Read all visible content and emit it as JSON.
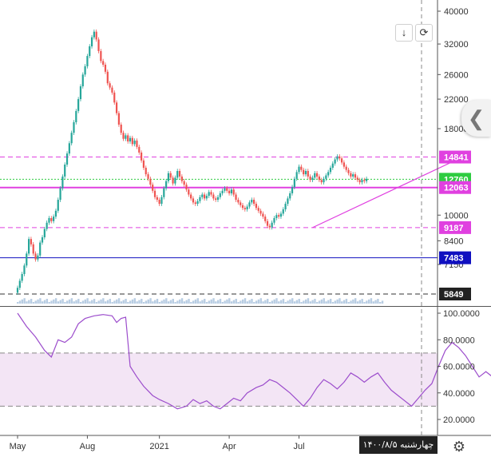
{
  "chart_data": [
    {
      "type": "candlestick",
      "title": "",
      "price_axis": {
        "scale": "log",
        "ticks": [
          40000,
          32000,
          26000,
          22000,
          18000,
          14841,
          12760,
          12063,
          10000,
          9187,
          8400,
          7483,
          7150,
          5849
        ],
        "tick_labels": [
          "40000",
          "32000",
          "26000",
          "22000",
          "18000",
          "14841",
          "12760",
          "12063",
          "10000",
          "9187",
          "8400",
          "7483",
          "7150",
          "5849"
        ]
      },
      "x_axis": {
        "ticks": [
          "May",
          "Aug",
          "2021",
          "Apr",
          "Jul"
        ]
      },
      "price_levels": [
        {
          "value": 14841,
          "label": "14841",
          "color": "#e040e0",
          "style": "dashed"
        },
        {
          "value": 12760,
          "label": "12760",
          "color": "#2ecc40",
          "style": "dotted"
        },
        {
          "value": 12063,
          "label": "12063",
          "color": "#e040e0",
          "style": "solid"
        },
        {
          "value": 9187,
          "label": "9187",
          "color": "#e040e0",
          "style": "dashed"
        },
        {
          "value": 7483,
          "label": "7483",
          "color": "#1010c0",
          "style": "solid"
        },
        {
          "value": 5849,
          "label": "5849",
          "color": "#333333",
          "style": "dashed"
        }
      ],
      "trend_lines": [
        {
          "from": {
            "t": 131,
            "price": 9187
          },
          "to": {
            "t": 200,
            "price": 15100
          },
          "color": "#e040e0"
        }
      ],
      "series": [
        {
          "values": [
            [
              5900,
              6100
            ],
            [
              6100,
              6400
            ],
            [
              6400,
              6700
            ],
            [
              6700,
              7100
            ],
            [
              7100,
              7700
            ],
            [
              7700,
              8500
            ],
            [
              8500,
              8200
            ],
            [
              8200,
              7700
            ],
            [
              7700,
              7400
            ],
            [
              7400,
              7600
            ],
            [
              7600,
              8300
            ],
            [
              8300,
              8600
            ],
            [
              8600,
              9100
            ],
            [
              9100,
              9500
            ],
            [
              9500,
              9800
            ],
            [
              9800,
              9600
            ],
            [
              9600,
              9900
            ],
            [
              9900,
              10300
            ],
            [
              10300,
              11100
            ],
            [
              11100,
              12000
            ],
            [
              12000,
              13000
            ],
            [
              13000,
              14100
            ],
            [
              14100,
              15200
            ],
            [
              15200,
              16300
            ],
            [
              16300,
              17500
            ],
            [
              17500,
              18800
            ],
            [
              18800,
              20300
            ],
            [
              20300,
              22000
            ],
            [
              22000,
              24000
            ],
            [
              24000,
              26000
            ],
            [
              26000,
              27500
            ],
            [
              27500,
              29500
            ],
            [
              29500,
              31500
            ],
            [
              31500,
              33500
            ],
            [
              33500,
              34800
            ],
            [
              34800,
              33000
            ],
            [
              33000,
              30500
            ],
            [
              30500,
              28500
            ],
            [
              28500,
              27800
            ],
            [
              27800,
              26500
            ],
            [
              26500,
              24500
            ],
            [
              24500,
              23800
            ],
            [
              23800,
              23000
            ],
            [
              23000,
              21500
            ],
            [
              21500,
              20000
            ],
            [
              20000,
              18500
            ],
            [
              18500,
              17500
            ],
            [
              17500,
              16800
            ],
            [
              16800,
              17200
            ],
            [
              17200,
              16500
            ],
            [
              16500,
              16900
            ],
            [
              16900,
              16200
            ],
            [
              16200,
              16600
            ],
            [
              16600,
              15900
            ],
            [
              15900,
              15300
            ],
            [
              15300,
              14500
            ],
            [
              14500,
              13800
            ],
            [
              13800,
              13200
            ],
            [
              13200,
              12800
            ],
            [
              12800,
              12300
            ],
            [
              12300,
              11800
            ],
            [
              11800,
              11300
            ],
            [
              11300,
              11100
            ],
            [
              11100,
              10800
            ],
            [
              10800,
              11300
            ],
            [
              11300,
              12000
            ],
            [
              12000,
              12600
            ],
            [
              12600,
              13300
            ],
            [
              13300,
              12900
            ],
            [
              12900,
              12400
            ],
            [
              12400,
              12900
            ],
            [
              12900,
              13500
            ],
            [
              13500,
              13000
            ],
            [
              13000,
              12600
            ],
            [
              12600,
              12300
            ],
            [
              12300,
              11900
            ],
            [
              11900,
              11500
            ],
            [
              11500,
              11200
            ],
            [
              11200,
              10900
            ],
            [
              10900,
              10800
            ],
            [
              10800,
              11000
            ],
            [
              11000,
              11300
            ],
            [
              11300,
              11500
            ],
            [
              11500,
              11200
            ],
            [
              11200,
              11400
            ],
            [
              11400,
              11700
            ],
            [
              11700,
              11500
            ],
            [
              11500,
              11200
            ],
            [
              11200,
              11100
            ],
            [
              11100,
              11300
            ],
            [
              11300,
              11600
            ],
            [
              11600,
              11800
            ],
            [
              11800,
              12000
            ],
            [
              12000,
              11800
            ],
            [
              11800,
              11600
            ],
            [
              11600,
              11900
            ],
            [
              11900,
              11500
            ],
            [
              11500,
              11100
            ],
            [
              11100,
              10900
            ],
            [
              10900,
              10700
            ],
            [
              10700,
              10500
            ],
            [
              10500,
              10400
            ],
            [
              10400,
              10600
            ],
            [
              10600,
              10900
            ],
            [
              10900,
              11100
            ],
            [
              11100,
              10800
            ],
            [
              10800,
              10500
            ],
            [
              10500,
              10300
            ],
            [
              10300,
              10100
            ],
            [
              10100,
              9900
            ],
            [
              9900,
              9600
            ],
            [
              9600,
              9300
            ],
            [
              9300,
              9200
            ],
            [
              9200,
              9500
            ],
            [
              9500,
              9800
            ],
            [
              9800,
              10000
            ],
            [
              10000,
              9900
            ],
            [
              9900,
              10100
            ],
            [
              10100,
              10400
            ],
            [
              10400,
              10800
            ],
            [
              10800,
              11200
            ],
            [
              11200,
              11600
            ],
            [
              11600,
              12100
            ],
            [
              12100,
              12800
            ],
            [
              12800,
              13400
            ],
            [
              13400,
              13900
            ],
            [
              13900,
              13600
            ],
            [
              13600,
              13200
            ],
            [
              13200,
              13500
            ],
            [
              13500,
              13000
            ],
            [
              13000,
              12700
            ],
            [
              12700,
              12900
            ],
            [
              12900,
              13300
            ],
            [
              13300,
              13000
            ],
            [
              13000,
              12700
            ],
            [
              12700,
              12500
            ],
            [
              12500,
              12800
            ],
            [
              12800,
              13100
            ],
            [
              13100,
              13400
            ],
            [
              13400,
              13800
            ],
            [
              13800,
              14200
            ],
            [
              14200,
              14600
            ],
            [
              14600,
              14900
            ],
            [
              14900,
              14700
            ],
            [
              14700,
              14300
            ],
            [
              14300,
              13900
            ],
            [
              13900,
              13600
            ],
            [
              13600,
              13300
            ],
            [
              13300,
              13000
            ],
            [
              13000,
              13200
            ],
            [
              13200,
              12900
            ],
            [
              12900,
              12700
            ],
            [
              12700,
              12500
            ],
            [
              12500,
              12700
            ],
            [
              12700,
              12600
            ],
            [
              12600,
              12800
            ]
          ]
        }
      ]
    },
    {
      "type": "line",
      "title": "",
      "y_axis": {
        "ticks": [
          100,
          80,
          60,
          40,
          20
        ],
        "tick_labels": [
          "100.0000",
          "80.0000",
          "60.0000",
          "40.0000",
          "20.0000"
        ]
      },
      "bands": [
        {
          "from": 30,
          "to": 70
        }
      ],
      "series": [
        {
          "values": [
            [
              0,
              100
            ],
            [
              4,
              90
            ],
            [
              8,
              82
            ],
            [
              12,
              72
            ],
            [
              15,
              67
            ],
            [
              18,
              80
            ],
            [
              21,
              78
            ],
            [
              24,
              82
            ],
            [
              27,
              92
            ],
            [
              30,
              96
            ],
            [
              34,
              98
            ],
            [
              38,
              99
            ],
            [
              42,
              98
            ],
            [
              44,
              93
            ],
            [
              46,
              96
            ],
            [
              48,
              97
            ],
            [
              50,
              60
            ],
            [
              53,
              52
            ],
            [
              56,
              45
            ],
            [
              60,
              38
            ],
            [
              63,
              35
            ],
            [
              67,
              32
            ],
            [
              71,
              28
            ],
            [
              75,
              30
            ],
            [
              78,
              35
            ],
            [
              81,
              32
            ],
            [
              84,
              34
            ],
            [
              87,
              30
            ],
            [
              90,
              28
            ],
            [
              93,
              32
            ],
            [
              96,
              36
            ],
            [
              99,
              34
            ],
            [
              102,
              40
            ],
            [
              106,
              44
            ],
            [
              109,
              46
            ],
            [
              112,
              50
            ],
            [
              115,
              48
            ],
            [
              118,
              44
            ],
            [
              121,
              40
            ],
            [
              124,
              35
            ],
            [
              127,
              30
            ],
            [
              130,
              36
            ],
            [
              133,
              44
            ],
            [
              136,
              50
            ],
            [
              139,
              47
            ],
            [
              142,
              43
            ],
            [
              145,
              48
            ],
            [
              148,
              55
            ],
            [
              151,
              52
            ],
            [
              154,
              48
            ],
            [
              157,
              52
            ],
            [
              160,
              55
            ],
            [
              163,
              48
            ],
            [
              166,
              42
            ],
            [
              169,
              38
            ],
            [
              172,
              34
            ],
            [
              175,
              30
            ],
            [
              178,
              36
            ],
            [
              181,
              42
            ],
            [
              184,
              47
            ],
            [
              187,
              60
            ],
            [
              190,
              72
            ],
            [
              193,
              78
            ],
            [
              196,
              74
            ],
            [
              199,
              68
            ],
            [
              202,
              60
            ],
            [
              205,
              52
            ],
            [
              208,
              56
            ],
            [
              211,
              52
            ],
            [
              214,
              60
            ],
            [
              217,
              64
            ],
            [
              220,
              56
            ],
            [
              223,
              52
            ],
            [
              226,
              48
            ],
            [
              229,
              42
            ],
            [
              232,
              46
            ],
            [
              235,
              42
            ],
            [
              238,
              40
            ],
            [
              241,
              44
            ],
            [
              244,
              46
            ]
          ]
        }
      ]
    }
  ],
  "toolbar": {
    "down_icon": "↓",
    "reset_icon": "⟳",
    "sidepanel_icon": "❮",
    "settings_icon": "⚙"
  },
  "date_badge": "چهارشنبه ۱۴۰۰/۸/۵",
  "colors": {
    "up": "#26a69a",
    "down": "#ef5350",
    "rsi_line": "#9c4dcc",
    "band_fill": "#f3e5f5",
    "volume": "#b8cde3"
  }
}
